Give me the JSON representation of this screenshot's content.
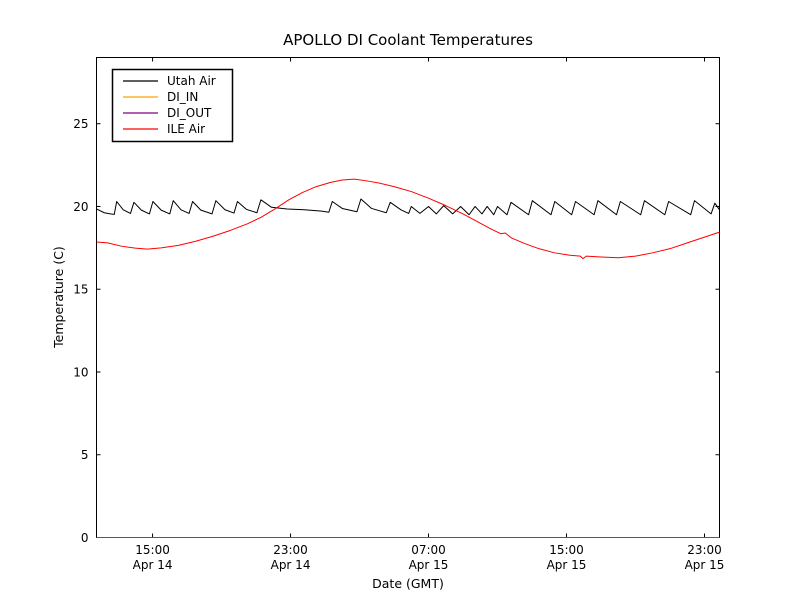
{
  "chart_data": {
    "type": "line",
    "title": "APOLLO DI Coolant Temperatures",
    "xlabel": "Date (GMT)",
    "ylabel": "Temperature (C)",
    "x_unit": "hours since Apr 14 00:00 GMT",
    "xlim": [
      11.75,
      47.87
    ],
    "ylim": [
      0,
      29
    ],
    "grid": false,
    "legend_position": "upper-left",
    "frame_color": "#000000",
    "x_ticks": [
      {
        "t": 15,
        "time": "15:00",
        "date": "Apr 14"
      },
      {
        "t": 23,
        "time": "23:00",
        "date": "Apr 14"
      },
      {
        "t": 31,
        "time": "07:00",
        "date": "Apr 15"
      },
      {
        "t": 39,
        "time": "15:00",
        "date": "Apr 15"
      },
      {
        "t": 47,
        "time": "23:00",
        "date": "Apr 15"
      }
    ],
    "y_ticks": [
      {
        "v": 0,
        "label": "0"
      },
      {
        "v": 5,
        "label": "5"
      },
      {
        "v": 10,
        "label": "10"
      },
      {
        "v": 15,
        "label": "15"
      },
      {
        "v": 20,
        "label": "20"
      },
      {
        "v": 25,
        "label": "25"
      }
    ],
    "series": [
      {
        "name": "Utah Air",
        "color": "#000000",
        "opacity": 1,
        "points": [
          [
            11.75,
            19.85
          ],
          [
            12.2,
            19.62
          ],
          [
            12.55,
            19.55
          ],
          [
            12.78,
            19.52
          ],
          [
            12.92,
            20.3
          ],
          [
            13.3,
            19.8
          ],
          [
            13.72,
            19.58
          ],
          [
            13.92,
            20.25
          ],
          [
            14.35,
            19.78
          ],
          [
            14.82,
            19.55
          ],
          [
            15.02,
            20.3
          ],
          [
            15.5,
            19.78
          ],
          [
            16.0,
            19.55
          ],
          [
            16.2,
            20.35
          ],
          [
            16.65,
            19.8
          ],
          [
            17.12,
            19.58
          ],
          [
            17.32,
            20.3
          ],
          [
            17.8,
            19.78
          ],
          [
            18.45,
            19.55
          ],
          [
            18.67,
            20.35
          ],
          [
            19.2,
            19.8
          ],
          [
            19.72,
            19.6
          ],
          [
            19.92,
            20.3
          ],
          [
            20.45,
            19.82
          ],
          [
            21.05,
            19.62
          ],
          [
            21.28,
            20.4
          ],
          [
            21.9,
            19.95
          ],
          [
            22.8,
            19.85
          ],
          [
            23.8,
            19.8
          ],
          [
            24.8,
            19.72
          ],
          [
            25.22,
            19.65
          ],
          [
            25.42,
            20.3
          ],
          [
            26.0,
            19.88
          ],
          [
            26.85,
            19.68
          ],
          [
            27.08,
            20.45
          ],
          [
            27.7,
            19.88
          ],
          [
            28.55,
            19.62
          ],
          [
            28.78,
            20.25
          ],
          [
            29.4,
            19.8
          ],
          [
            29.85,
            19.58
          ],
          [
            30.0,
            20.0
          ],
          [
            30.5,
            19.58
          ],
          [
            31.0,
            20.0
          ],
          [
            31.45,
            19.55
          ],
          [
            31.88,
            20.05
          ],
          [
            32.4,
            19.55
          ],
          [
            32.86,
            20.0
          ],
          [
            33.35,
            19.5
          ],
          [
            33.7,
            20.0
          ],
          [
            34.1,
            19.55
          ],
          [
            34.4,
            20.0
          ],
          [
            34.78,
            19.5
          ],
          [
            35.0,
            20.0
          ],
          [
            35.55,
            19.5
          ],
          [
            35.78,
            20.25
          ],
          [
            36.8,
            19.5
          ],
          [
            37.02,
            20.35
          ],
          [
            38.1,
            19.5
          ],
          [
            38.32,
            20.3
          ],
          [
            39.3,
            19.5
          ],
          [
            39.52,
            20.3
          ],
          [
            40.6,
            19.5
          ],
          [
            40.82,
            20.35
          ],
          [
            41.9,
            19.5
          ],
          [
            42.12,
            20.3
          ],
          [
            43.3,
            19.5
          ],
          [
            43.52,
            20.35
          ],
          [
            44.7,
            19.5
          ],
          [
            44.92,
            20.3
          ],
          [
            46.2,
            19.5
          ],
          [
            46.42,
            20.35
          ],
          [
            47.38,
            19.55
          ],
          [
            47.6,
            20.2
          ],
          [
            47.87,
            19.8
          ]
        ]
      },
      {
        "name": "DI_IN",
        "color": "#ffa500",
        "opacity": 0.9,
        "points": [
          [
            11.75,
            0
          ],
          [
            47.87,
            0
          ]
        ]
      },
      {
        "name": "DI_OUT",
        "color": "#800080",
        "opacity": 0.65,
        "points": [
          [
            11.75,
            0
          ],
          [
            47.87,
            0
          ]
        ]
      },
      {
        "name": "ILE Air",
        "color": "#ff0000",
        "opacity": 1,
        "points": [
          [
            11.75,
            17.85
          ],
          [
            12.4,
            17.8
          ],
          [
            13.2,
            17.6
          ],
          [
            14.0,
            17.48
          ],
          [
            14.7,
            17.42
          ],
          [
            15.5,
            17.5
          ],
          [
            16.5,
            17.65
          ],
          [
            17.5,
            17.9
          ],
          [
            18.5,
            18.2
          ],
          [
            19.5,
            18.55
          ],
          [
            20.5,
            18.95
          ],
          [
            21.3,
            19.35
          ],
          [
            22.1,
            19.85
          ],
          [
            22.9,
            20.4
          ],
          [
            23.7,
            20.85
          ],
          [
            24.5,
            21.2
          ],
          [
            25.3,
            21.45
          ],
          [
            26.0,
            21.6
          ],
          [
            26.7,
            21.65
          ],
          [
            27.4,
            21.55
          ],
          [
            28.2,
            21.4
          ],
          [
            29.0,
            21.2
          ],
          [
            30.0,
            20.9
          ],
          [
            31.0,
            20.5
          ],
          [
            32.0,
            20.05
          ],
          [
            33.0,
            19.55
          ],
          [
            33.8,
            19.1
          ],
          [
            34.6,
            18.65
          ],
          [
            35.2,
            18.35
          ],
          [
            35.45,
            18.4
          ],
          [
            35.8,
            18.1
          ],
          [
            36.6,
            17.75
          ],
          [
            37.4,
            17.45
          ],
          [
            38.3,
            17.2
          ],
          [
            39.2,
            17.05
          ],
          [
            39.8,
            17.0
          ],
          [
            39.95,
            16.85
          ],
          [
            40.15,
            17.0
          ],
          [
            41.0,
            16.95
          ],
          [
            42.0,
            16.9
          ],
          [
            43.0,
            17.0
          ],
          [
            44.0,
            17.2
          ],
          [
            45.0,
            17.45
          ],
          [
            46.0,
            17.8
          ],
          [
            47.0,
            18.15
          ],
          [
            47.87,
            18.45
          ]
        ]
      }
    ]
  }
}
